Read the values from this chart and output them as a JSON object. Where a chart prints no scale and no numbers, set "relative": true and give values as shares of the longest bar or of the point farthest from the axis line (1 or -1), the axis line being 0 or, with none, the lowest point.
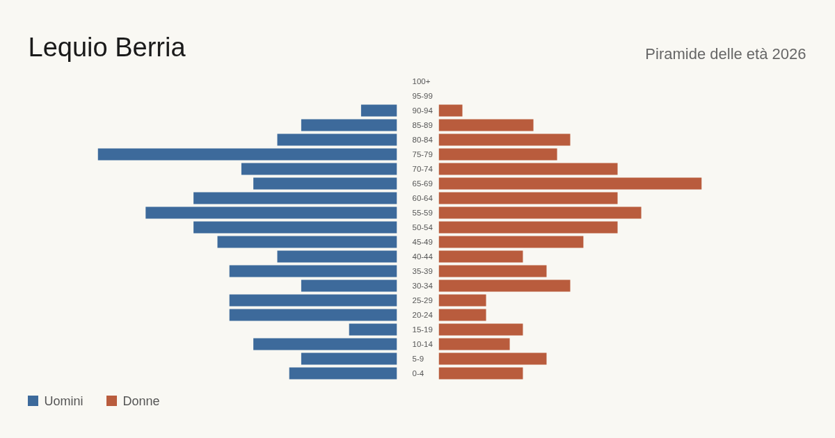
{
  "chart_data": [
    {
      "type": "bar",
      "orientation": "horizontal",
      "relative": true,
      "title": "Lequio Berria",
      "legend": "bottom left",
      "tick_labels": "y",
      "categories": [
        "100+",
        "95-99",
        "90-94",
        "85-89",
        "80-84",
        "75-79",
        "70-74",
        "65-69",
        "60-64",
        "55-59",
        "50-54",
        "45-49",
        "40-44",
        "35-39",
        "30-34",
        "25-29",
        "20-24",
        "15-19",
        "10-14",
        "5-9",
        "0-4"
      ],
      "series": [
        {
          "name": "Uomini",
          "color": "#3d6a9b",
          "values": [
            0,
            0,
            0.12,
            0.32,
            0.4,
            1,
            0.52,
            0.48,
            0.68,
            0.84,
            0.68,
            0.6,
            0.4,
            0.56,
            0.32,
            0.56,
            0.56,
            0.16,
            0.48,
            0.32,
            0.36
          ]
        }
      ]
    },
    {
      "type": "bar",
      "orientation": "horizontal",
      "relative": true,
      "subtitle": "Piramide delle età 2026",
      "legend": "bottom left",
      "tick_labels": false,
      "categories": [
        null,
        null,
        null,
        null,
        null,
        null,
        null,
        null,
        null,
        null,
        null,
        null,
        null,
        null,
        null,
        null,
        null,
        null,
        null,
        null,
        null
      ],
      "series": [
        {
          "name": "Donne",
          "color": "#b95c3d",
          "values": [
            0,
            0,
            0.09,
            0.36,
            0.5,
            0.45,
            0.68,
            1,
            0.68,
            0.77,
            0.68,
            0.55,
            0.32,
            0.41,
            0.5,
            0.18,
            0.18,
            0.32,
            0.27,
            0.41,
            0.32
          ]
        }
      ]
    }
  ]
}
